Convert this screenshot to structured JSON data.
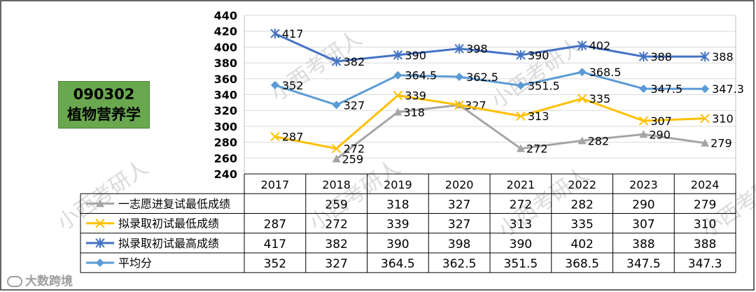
{
  "badge": {
    "code": "090302",
    "name": "植物营养学"
  },
  "watermark_text": "小西考研人",
  "footer_text": "大数跨境",
  "colors": {
    "first_choice": "#a5a5a5",
    "admit_min": "#ffc000",
    "admit_max": "#4472c4",
    "average": "#5b9bd5",
    "badge": "#6aa84f"
  },
  "chart_data": {
    "type": "line",
    "categories": [
      "2017",
      "2018",
      "2019",
      "2020",
      "2021",
      "2022",
      "2023",
      "2024"
    ],
    "ylim": [
      240,
      440
    ],
    "ytick_step": 20,
    "grid": true,
    "series": [
      {
        "name": "一志愿进复试最低成绩",
        "marker": "triangle",
        "color": "#a5a5a5",
        "values": [
          null,
          259,
          318,
          327,
          272,
          282,
          290,
          279
        ],
        "table_values": [
          "",
          "259",
          "318",
          "327",
          "272",
          "282",
          "290",
          "279"
        ],
        "labels": [
          null,
          "259",
          "318",
          "327",
          "272",
          "282",
          "290",
          "279"
        ]
      },
      {
        "name": "拟录取初试最低成绩",
        "marker": "x",
        "color": "#ffc000",
        "values": [
          287,
          272,
          339,
          327,
          313,
          335,
          307,
          310
        ],
        "table_values": [
          "287",
          "272",
          "339",
          "327",
          "313",
          "335",
          "307",
          "310"
        ],
        "labels": [
          "287",
          "272",
          "339",
          null,
          "313",
          "335",
          "307",
          "310"
        ]
      },
      {
        "name": "拟录取初试最高成绩",
        "marker": "star",
        "color": "#4472c4",
        "values": [
          417,
          382,
          390,
          398,
          390,
          402,
          388,
          388
        ],
        "table_values": [
          "417",
          "382",
          "390",
          "398",
          "390",
          "402",
          "388",
          "388"
        ],
        "labels": [
          "417",
          "382",
          "390",
          "398",
          "390",
          "402",
          "388",
          "388"
        ]
      },
      {
        "name": "平均分",
        "marker": "diamond",
        "color": "#5b9bd5",
        "values": [
          352,
          327,
          364.5,
          362.5,
          351.5,
          368.5,
          347.5,
          347.3
        ],
        "table_values": [
          "352",
          "327",
          "364.5",
          "362.5",
          "351.5",
          "368.5",
          "347.5",
          "347.3"
        ],
        "labels": [
          "352",
          "327",
          "364.5",
          "362.5",
          "351.5",
          "368.5",
          "347.5",
          "347.3"
        ]
      }
    ]
  }
}
